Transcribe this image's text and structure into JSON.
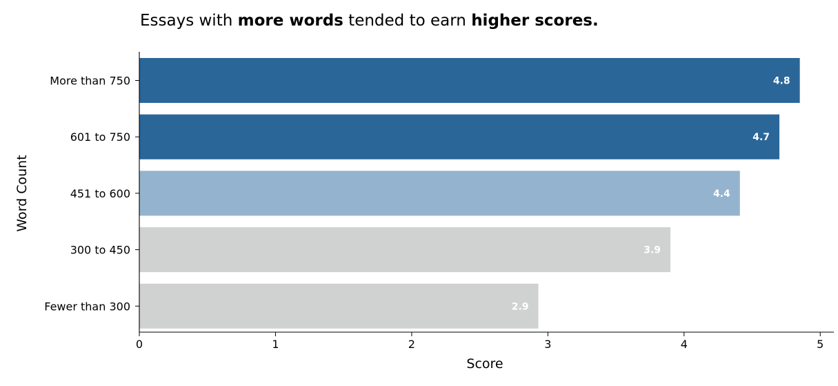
{
  "chart_data": {
    "type": "bar",
    "orientation": "horizontal",
    "title_parts": [
      {
        "text": "Essays with ",
        "bold": false
      },
      {
        "text": "more words",
        "bold": true
      },
      {
        "text": " tended to earn ",
        "bold": false
      },
      {
        "text": "higher scores.",
        "bold": true
      }
    ],
    "xlabel": "Score",
    "ylabel": "Word Count",
    "categories": [
      "More than 750",
      "601 to 750",
      "451 to 600",
      "300 to 450",
      "Fewer than 300"
    ],
    "values": [
      4.85,
      4.7,
      4.41,
      3.9,
      2.93
    ],
    "data_labels": [
      "4.8",
      "4.7",
      "4.4",
      "3.9",
      "2.9"
    ],
    "colors": [
      "#2b6699",
      "#2b6699",
      "#94b3ce",
      "#d0d2d1",
      "#d0d2d1"
    ],
    "xlim": [
      0,
      5.1
    ],
    "xticks": [
      0,
      1,
      2,
      3,
      4,
      5
    ],
    "grid": false
  }
}
